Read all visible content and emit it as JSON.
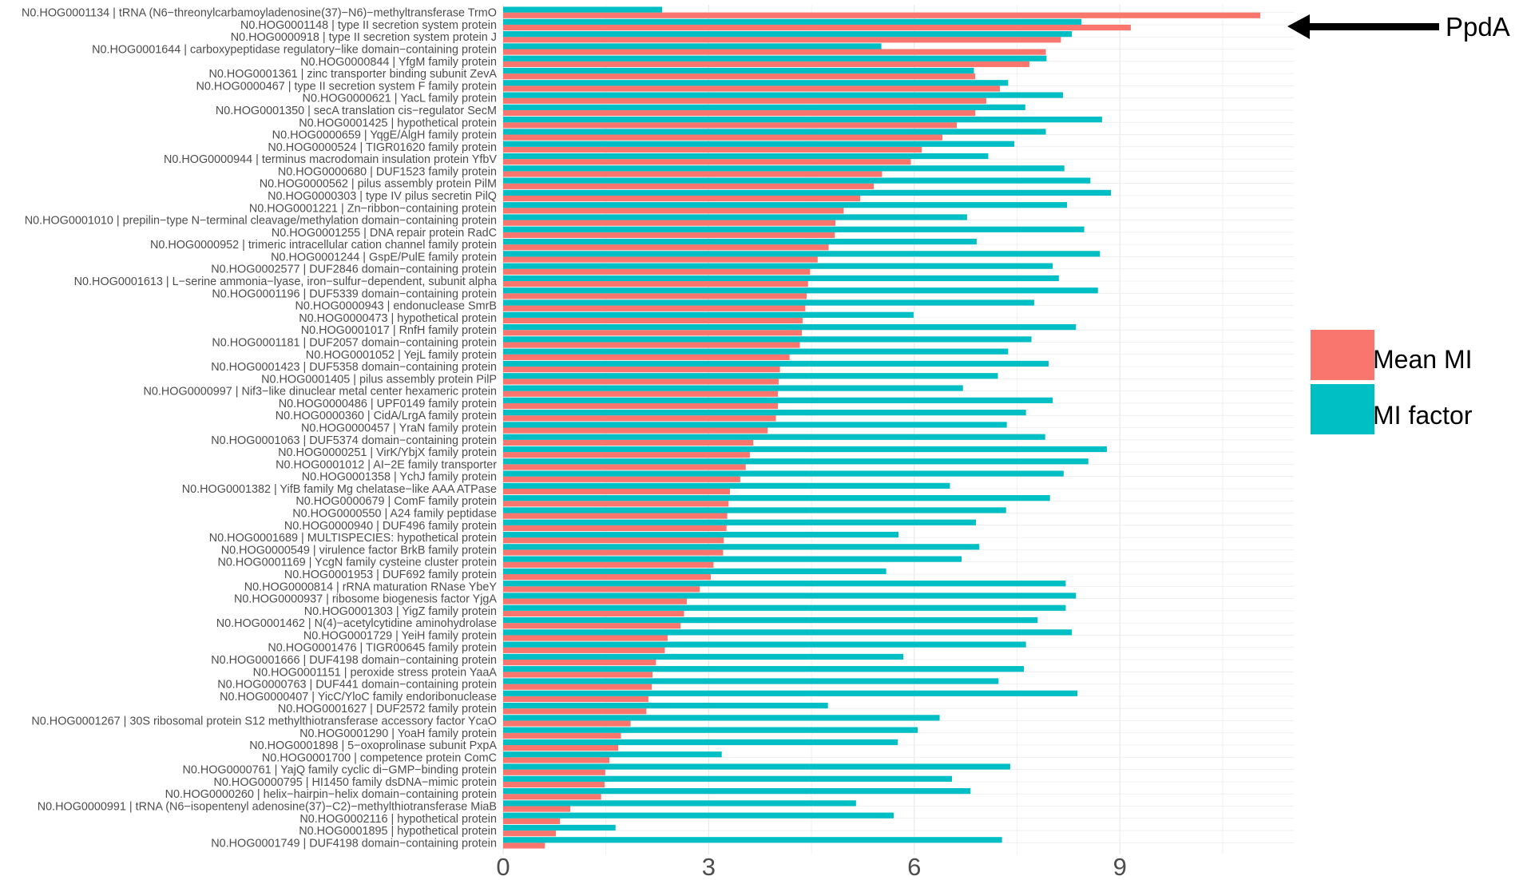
{
  "colors": {
    "mean_mi": "#F8766D",
    "mi_factor": "#00BFC4",
    "grid": "#ebebeb",
    "label_text": "#4d4d4d",
    "arrow": "#000000"
  },
  "chart_data": {
    "type": "bar",
    "orientation": "horizontal",
    "title": "",
    "xlabel": "",
    "ylabel": "",
    "xlim": [
      0,
      11.6
    ],
    "x_ticks": [
      0,
      3,
      6,
      9
    ],
    "grid": true,
    "legend_position": "right",
    "categories": [
      "N0.HOG0001134 | tRNA (N6−threonylcarbamoyladenosine(37)−N6)−methyltransferase TrmO",
      "N0.HOG0001148 | type II secretion system protein",
      "N0.HOG0000918 | type II secretion system protein J",
      "N0.HOG0001644 | carboxypeptidase regulatory−like domain−containing protein",
      "N0.HOG0000844 | YfgM family protein",
      "N0.HOG0001361 | zinc transporter binding subunit ZevA",
      "N0.HOG0000467 | type II secretion system F family protein",
      "N0.HOG0000621 | YacL family protein",
      "N0.HOG0001350 | secA translation cis−regulator SecM",
      "N0.HOG0001425 | hypothetical protein",
      "N0.HOG0000659 | YqgE/AlgH family protein",
      "N0.HOG0000524 | TIGR01620 family protein",
      "N0.HOG0000944 | terminus macrodomain insulation protein YfbV",
      "N0.HOG0000680 | DUF1523 family protein",
      "N0.HOG0000562 | pilus assembly protein PilM",
      "N0.HOG0000303 | type IV pilus secretin PilQ",
      "N0.HOG0001221 | Zn−ribbon−containing protein",
      "N0.HOG0001010 | prepilin−type N−terminal cleavage/methylation domain−containing protein",
      "N0.HOG0001255 | DNA repair protein RadC",
      "N0.HOG0000952 | trimeric intracellular cation channel family protein",
      "N0.HOG0001244 | GspE/PulE family protein",
      "N0.HOG0002577 | DUF2846 domain−containing protein",
      "N0.HOG0001613 | L−serine ammonia−lyase, iron−sulfur−dependent, subunit alpha",
      "N0.HOG0001196 | DUF5339 domain−containing protein",
      "N0.HOG0000943 | endonuclease SmrB",
      "N0.HOG0000473 | hypothetical protein",
      "N0.HOG0001017 | RnfH family protein",
      "N0.HOG0001181 | DUF2057 domain−containing protein",
      "N0.HOG0001052 | YejL family protein",
      "N0.HOG0001423 | DUF5358 domain−containing protein",
      "N0.HOG0001405 | pilus assembly protein PilP",
      "N0.HOG0000997 | Nif3−like dinuclear metal center hexameric protein",
      "N0.HOG0000486 | UPF0149 family protein",
      "N0.HOG0000360 | CidA/LrgA family protein",
      "N0.HOG0000457 | YraN family protein",
      "N0.HOG0001063 | DUF5374 domain−containing protein",
      "N0.HOG0000251 | VirK/YbjX family protein",
      "N0.HOG0001012 | AI−2E family transporter",
      "N0.HOG0001358 | YchJ family protein",
      "N0.HOG0001382 | YifB family Mg chelatase−like AAA ATPase",
      "N0.HOG0000679 | ComF family protein",
      "N0.HOG0000550 | A24 family peptidase",
      "N0.HOG0000940 | DUF496 family protein",
      "N0.HOG0001689 | MULTISPECIES: hypothetical protein",
      "N0.HOG0000549 | virulence factor BrkB family protein",
      "N0.HOG0001169 | YcgN family cysteine cluster protein",
      "N0.HOG0001953 | DUF692 family protein",
      "N0.HOG0000814 | rRNA maturation RNase YbeY",
      "N0.HOG0000937 | ribosome biogenesis factor YjgA",
      "N0.HOG0001303 | YigZ family protein",
      "N0.HOG0001462 | N(4)−acetylcytidine aminohydrolase",
      "N0.HOG0001729 | YeiH family protein",
      "N0.HOG0001476 | TIGR00645 family protein",
      "N0.HOG0001666 | DUF4198 domain−containing protein",
      "N0.HOG0001151 | peroxide stress protein YaaA",
      "N0.HOG0000763 | DUF441 domain−containing protein",
      "N0.HOG0000407 | YicC/YloC family endoribonuclease",
      "N0.HOG0001627 | DUF2572 family protein",
      "N0.HOG0001267 | 30S ribosomal protein S12 methylthiotransferase accessory factor YcaO",
      "N0.HOG0001290 | YoaH family protein",
      "N0.HOG0001898 | 5−oxoprolinase subunit PxpA",
      "N0.HOG0001700 | competence protein ComC",
      "N0.HOG0000761 | YajQ family cyclic di−GMP−binding protein",
      "N0.HOG0000795 | HI1450 family dsDNA−mimic protein",
      "N0.HOG0000260 | helix−hairpin−helix domain−containing protein",
      "N0.HOG0000991 | tRNA (N6−isopentenyl adenosine(37)−C2)−methylthiotransferase MiaB",
      "N0.HOG0002116 | hypothetical protein",
      "N0.HOG0001895 | hypothetical protein",
      "N0.HOG0001749 | DUF4198 domain−containing protein"
    ],
    "series": [
      {
        "name": "Mean MI",
        "values": [
          11.05,
          9.16,
          8.14,
          7.92,
          7.68,
          6.89,
          7.25,
          7.05,
          6.89,
          6.62,
          6.41,
          6.11,
          5.95,
          5.53,
          5.41,
          5.21,
          4.97,
          4.85,
          4.84,
          4.75,
          4.59,
          4.48,
          4.45,
          4.43,
          4.41,
          4.37,
          4.36,
          4.33,
          4.18,
          4.04,
          4.02,
          4.01,
          4.01,
          3.98,
          3.86,
          3.65,
          3.6,
          3.54,
          3.46,
          3.31,
          3.29,
          3.27,
          3.26,
          3.22,
          3.21,
          3.07,
          3.03,
          2.87,
          2.68,
          2.64,
          2.59,
          2.4,
          2.36,
          2.23,
          2.18,
          2.17,
          2.12,
          2.09,
          1.86,
          1.72,
          1.68,
          1.55,
          1.49,
          1.48,
          1.43,
          0.98,
          0.83,
          0.77,
          0.61
        ]
      },
      {
        "name": "MI factor",
        "values": [
          2.32,
          8.44,
          8.3,
          5.52,
          7.93,
          6.87,
          7.37,
          8.17,
          7.62,
          8.74,
          7.92,
          7.46,
          7.08,
          8.19,
          8.57,
          8.87,
          8.23,
          6.77,
          8.48,
          6.91,
          8.71,
          8.02,
          8.11,
          8.68,
          7.75,
          5.99,
          8.36,
          7.71,
          7.37,
          7.96,
          7.22,
          6.71,
          8.02,
          7.63,
          7.35,
          7.91,
          8.81,
          8.54,
          8.18,
          6.52,
          7.98,
          7.34,
          6.9,
          5.77,
          6.95,
          6.69,
          5.59,
          8.21,
          8.36,
          8.21,
          7.8,
          8.3,
          7.63,
          5.84,
          7.6,
          7.23,
          8.38,
          4.74,
          6.37,
          6.05,
          5.76,
          3.19,
          7.4,
          6.55,
          6.82,
          5.15,
          5.7,
          1.64,
          7.28
        ]
      }
    ],
    "annotations": [
      {
        "text": "PpdA",
        "target_index": 0
      }
    ]
  }
}
